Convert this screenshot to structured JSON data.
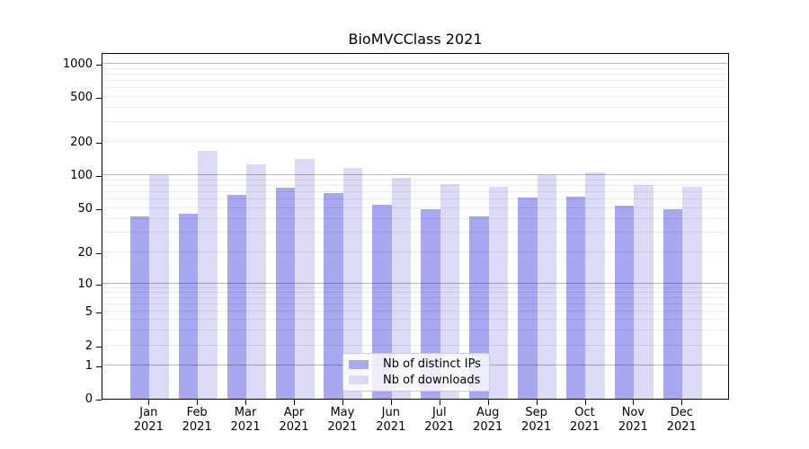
{
  "chart_data": {
    "type": "bar",
    "title": "BioMVCClass 2021",
    "x_tick_months": [
      "Jan",
      "Feb",
      "Mar",
      "Apr",
      "May",
      "Jun",
      "Jul",
      "Aug",
      "Sep",
      "Oct",
      "Nov",
      "Dec"
    ],
    "x_tick_year": "2021",
    "y_ticks": [
      "0",
      "1",
      "2",
      "5",
      "10",
      "20",
      "50",
      "100",
      "200",
      "500",
      "1000"
    ],
    "y_scale": "symlog (linear below 1, log above)",
    "ylim": [
      0,
      1280
    ],
    "grid": true,
    "legend_position": "lower center inside plot",
    "series": [
      {
        "name": "Nb of distinct IPs",
        "color": "#a8a8f2",
        "values": [
          42,
          45,
          66,
          77,
          69,
          54,
          49,
          42,
          63,
          64,
          53,
          49
        ]
      },
      {
        "name": "Nb of downloads",
        "color": "#dbdbf8",
        "values": [
          100,
          165,
          125,
          140,
          116,
          94,
          83,
          78,
          100,
          106,
          82,
          78
        ]
      }
    ]
  }
}
